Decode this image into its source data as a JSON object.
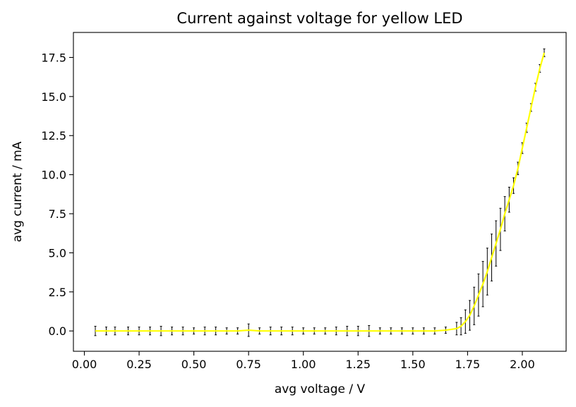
{
  "chart_data": {
    "type": "line",
    "title": "Current against voltage for yellow LED",
    "xlabel": "avg voltage / V",
    "ylabel": "avg current / mA",
    "xlim": [
      -0.05,
      2.2
    ],
    "ylim": [
      -1.3,
      19.1
    ],
    "xticks": [
      0.0,
      0.25,
      0.5,
      0.75,
      1.0,
      1.25,
      1.5,
      1.75,
      2.0
    ],
    "xtick_labels": [
      "0.00",
      "0.25",
      "0.50",
      "0.75",
      "1.00",
      "1.25",
      "1.50",
      "1.75",
      "2.00"
    ],
    "yticks": [
      0.0,
      2.5,
      5.0,
      7.5,
      10.0,
      12.5,
      15.0,
      17.5
    ],
    "ytick_labels": [
      "0.0",
      "2.5",
      "5.0",
      "7.5",
      "10.0",
      "12.5",
      "15.0",
      "17.5"
    ],
    "grid": false,
    "line_color": "#ffff00",
    "errorbar_color": "#000000",
    "series": [
      {
        "x": [
          0.05,
          0.1,
          0.14,
          0.2,
          0.25,
          0.3,
          0.35,
          0.4,
          0.45,
          0.5,
          0.55,
          0.6,
          0.65,
          0.7,
          0.75,
          0.8,
          0.85,
          0.9,
          0.95,
          1.0,
          1.05,
          1.1,
          1.15,
          1.2,
          1.25,
          1.3,
          1.35,
          1.4,
          1.45,
          1.5,
          1.55,
          1.6,
          1.65,
          1.7,
          1.72,
          1.74,
          1.76,
          1.78,
          1.8,
          1.82,
          1.84,
          1.86,
          1.88,
          1.9,
          1.92,
          1.94,
          1.96,
          1.98,
          2.0,
          2.02,
          2.04,
          2.06,
          2.08,
          2.1
        ],
        "y": [
          0.0,
          0.0,
          0.0,
          0.0,
          0.0,
          0.0,
          0.0,
          0.0,
          0.0,
          0.0,
          0.0,
          0.0,
          0.0,
          0.0,
          0.05,
          0.0,
          0.0,
          0.0,
          0.0,
          0.0,
          0.0,
          0.0,
          0.0,
          0.0,
          0.0,
          0.0,
          0.0,
          0.0,
          0.0,
          0.0,
          0.0,
          0.0,
          0.05,
          0.15,
          0.3,
          0.6,
          1.0,
          1.6,
          2.3,
          3.0,
          3.8,
          4.7,
          5.6,
          6.5,
          7.5,
          8.4,
          9.3,
          10.4,
          11.7,
          13.0,
          14.3,
          15.6,
          16.8,
          17.8
        ],
        "yerr": [
          0.3,
          0.25,
          0.25,
          0.25,
          0.25,
          0.25,
          0.3,
          0.25,
          0.25,
          0.2,
          0.25,
          0.25,
          0.2,
          0.2,
          0.4,
          0.2,
          0.25,
          0.25,
          0.25,
          0.2,
          0.2,
          0.2,
          0.25,
          0.3,
          0.3,
          0.35,
          0.2,
          0.2,
          0.2,
          0.2,
          0.2,
          0.2,
          0.2,
          0.4,
          0.55,
          0.75,
          0.95,
          1.2,
          1.35,
          1.45,
          1.5,
          1.5,
          1.45,
          1.35,
          1.1,
          0.8,
          0.5,
          0.4,
          0.35,
          0.3,
          0.25,
          0.25,
          0.25,
          0.25
        ]
      }
    ]
  }
}
